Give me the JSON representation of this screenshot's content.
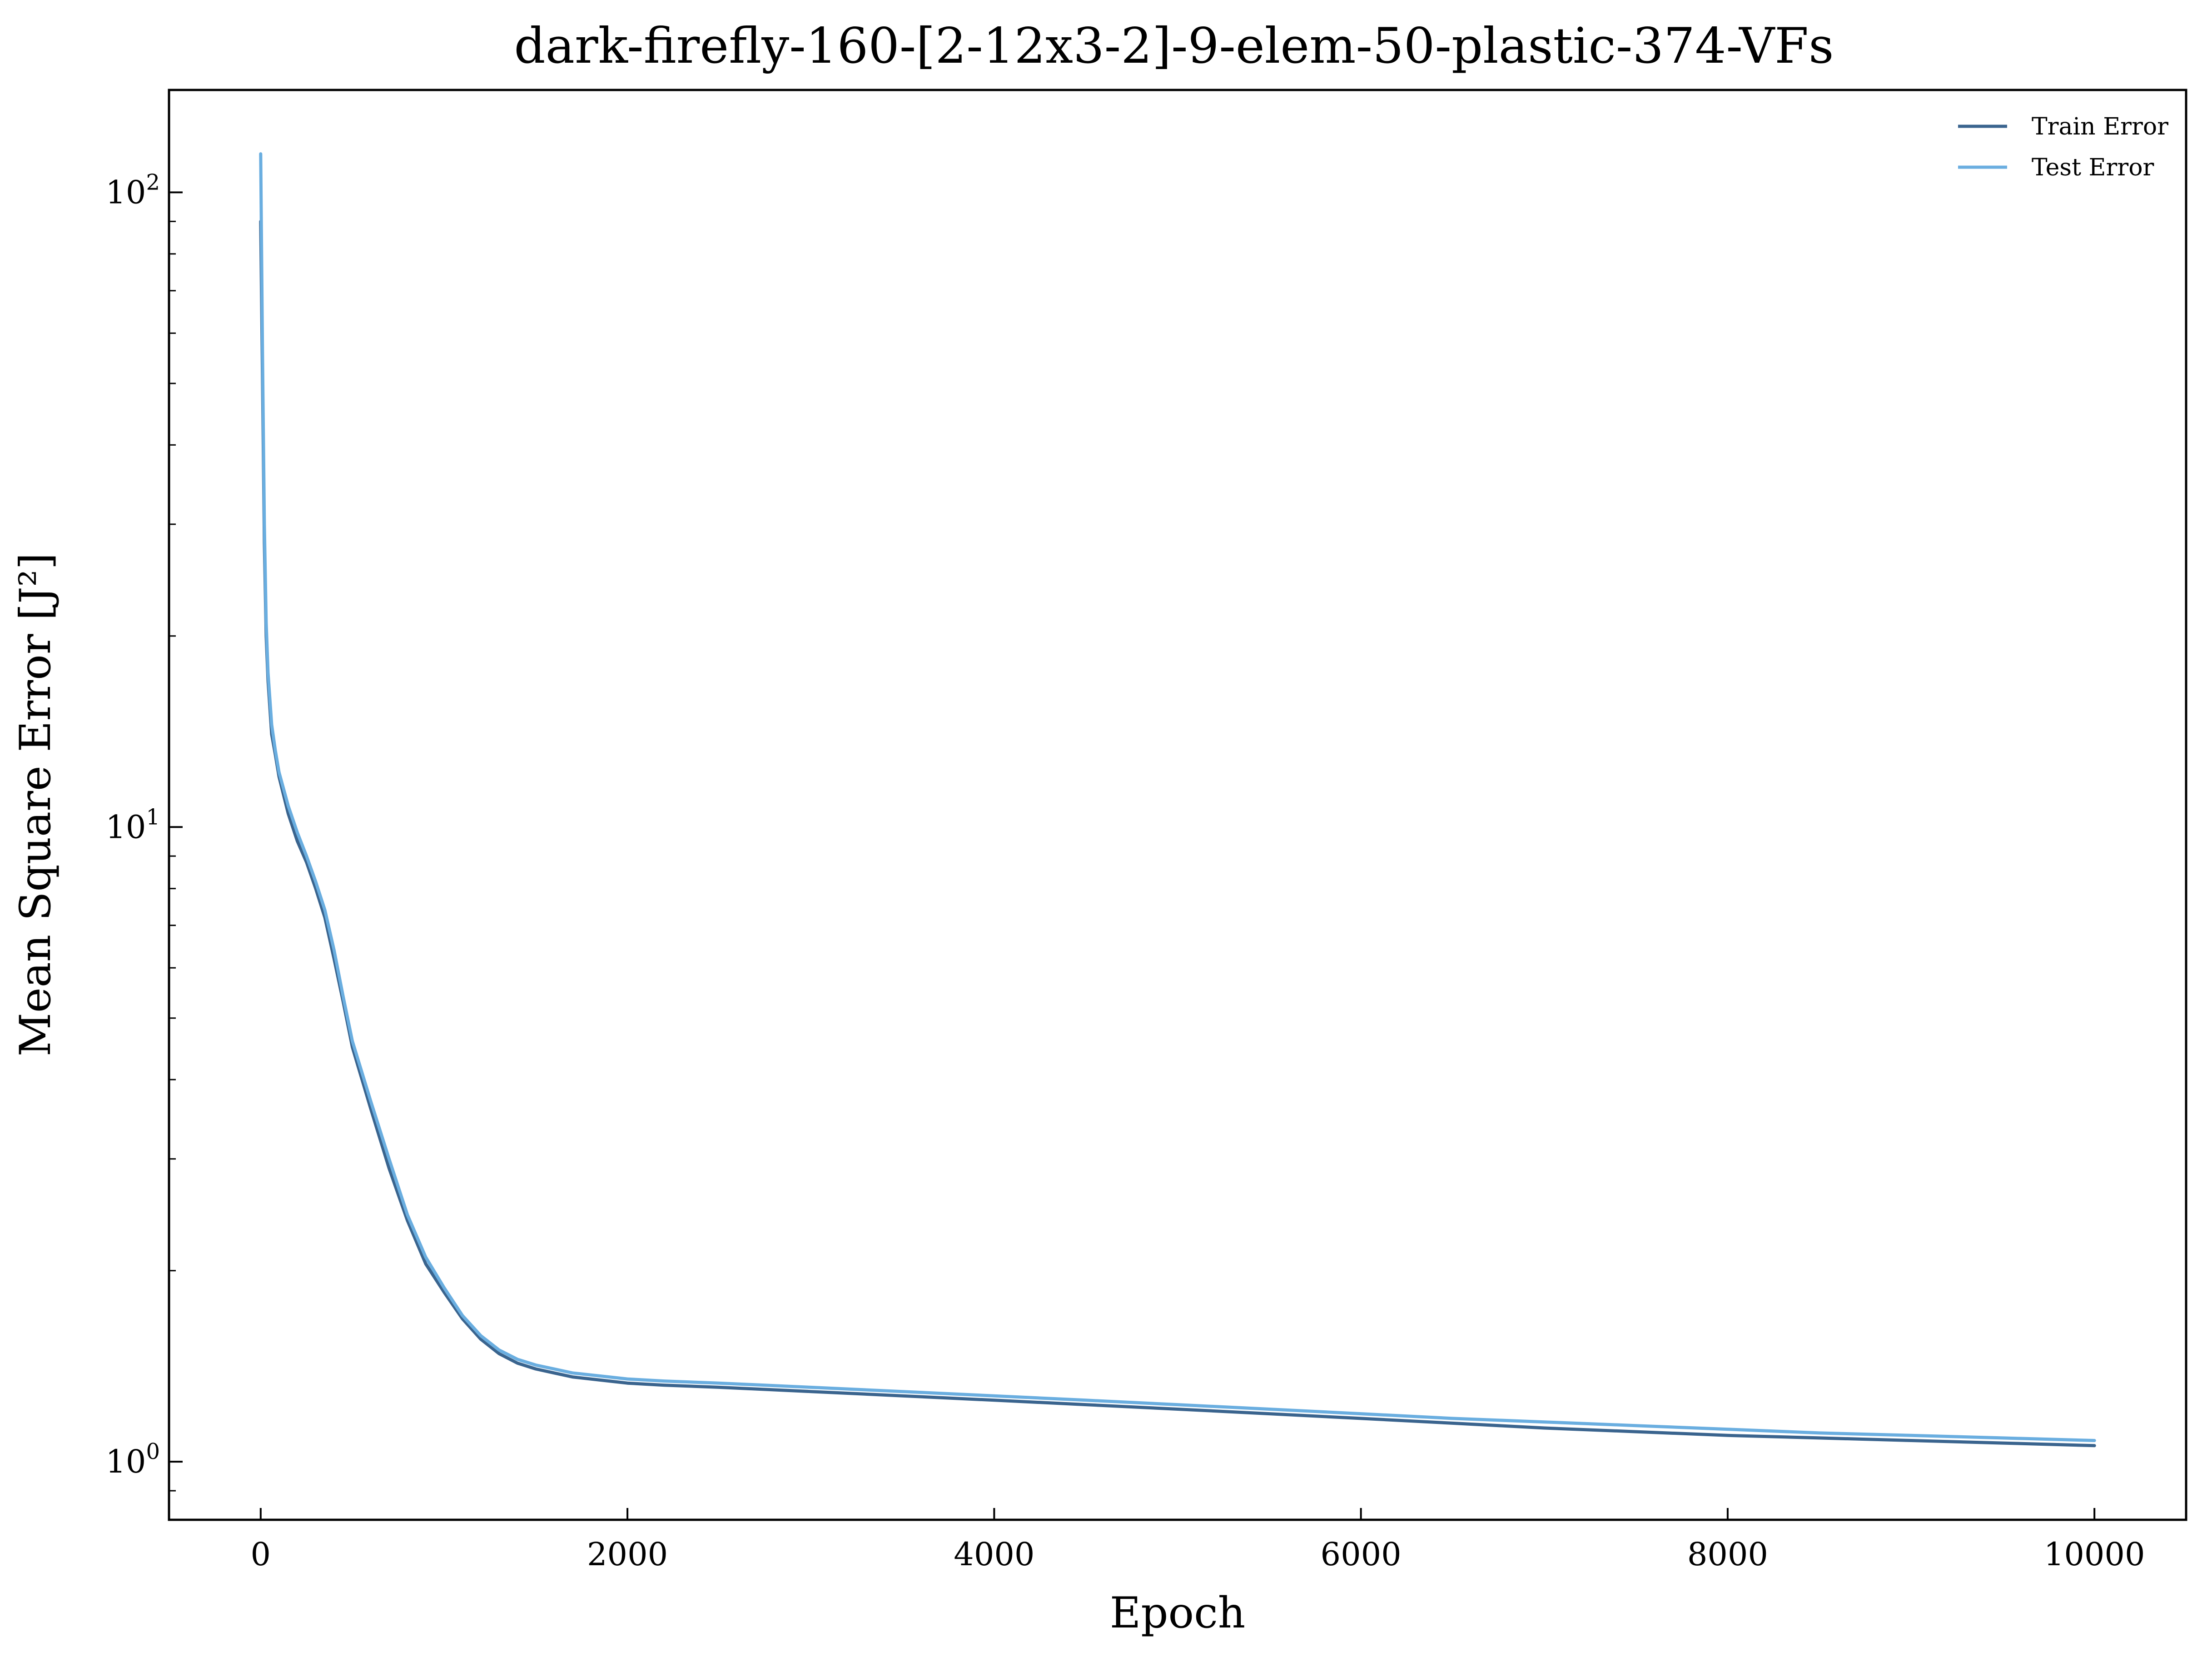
{
  "chart_data": {
    "type": "line",
    "title": "dark-firefly-160-[2-12x3-2]-9-elem-50-plastic-374-VFs",
    "xlabel": "Epoch",
    "ylabel": "Mean Square Error [J²]",
    "xlim": [
      -500,
      10500
    ],
    "ylim": [
      0.81,
      145
    ],
    "yscale": "log",
    "grid": false,
    "legend_position": "top-right",
    "x_ticks": [
      {
        "value": 0,
        "label": "0"
      },
      {
        "value": 2000,
        "label": "2000"
      },
      {
        "value": 4000,
        "label": "4000"
      },
      {
        "value": 6000,
        "label": "6000"
      },
      {
        "value": 8000,
        "label": "8000"
      },
      {
        "value": 10000,
        "label": "10000"
      }
    ],
    "y_ticks": [
      {
        "value": 1,
        "base": "10",
        "exp": "0"
      },
      {
        "value": 10,
        "base": "10",
        "exp": "1"
      },
      {
        "value": 100,
        "base": "10",
        "exp": "2"
      }
    ],
    "y_minor_ticks": [
      0.9,
      2,
      3,
      4,
      5,
      6,
      7,
      8,
      9,
      20,
      30,
      40,
      50,
      60,
      70,
      80,
      90
    ],
    "series": [
      {
        "name": "Train Error",
        "color": "#3a648e",
        "x": [
          0,
          10,
          20,
          30,
          40,
          60,
          80,
          100,
          150,
          200,
          250,
          300,
          350,
          400,
          450,
          500,
          600,
          700,
          800,
          900,
          1000,
          1100,
          1200,
          1300,
          1400,
          1500,
          1600,
          1700,
          1800,
          1900,
          2000,
          2200,
          2500,
          3000,
          3500,
          4000,
          4500,
          5000,
          5500,
          6000,
          6500,
          7000,
          7500,
          8000,
          8500,
          9000,
          9500,
          10000
        ],
        "y": [
          90,
          50,
          28,
          20,
          17,
          14,
          13,
          12,
          10.5,
          9.5,
          8.8,
          8.0,
          7.2,
          6.2,
          5.3,
          4.5,
          3.6,
          2.9,
          2.4,
          2.05,
          1.85,
          1.68,
          1.56,
          1.48,
          1.43,
          1.4,
          1.38,
          1.36,
          1.35,
          1.34,
          1.33,
          1.32,
          1.31,
          1.29,
          1.27,
          1.25,
          1.23,
          1.21,
          1.19,
          1.17,
          1.15,
          1.13,
          1.115,
          1.1,
          1.09,
          1.08,
          1.07,
          1.06
        ]
      },
      {
        "name": "Test Error",
        "color": "#6aaee0",
        "x": [
          0,
          10,
          20,
          30,
          40,
          60,
          80,
          100,
          150,
          200,
          250,
          300,
          350,
          400,
          450,
          500,
          600,
          700,
          800,
          900,
          1000,
          1100,
          1200,
          1300,
          1400,
          1500,
          1600,
          1700,
          1800,
          1900,
          2000,
          2200,
          2500,
          3000,
          3500,
          4000,
          4500,
          5000,
          5500,
          6000,
          6500,
          7000,
          7500,
          8000,
          8500,
          9000,
          9500,
          10000
        ],
        "y": [
          115,
          55,
          30,
          21,
          17.5,
          14.5,
          13.2,
          12.2,
          10.8,
          9.8,
          9.0,
          8.2,
          7.4,
          6.4,
          5.4,
          4.6,
          3.7,
          3.0,
          2.45,
          2.1,
          1.88,
          1.7,
          1.58,
          1.5,
          1.45,
          1.42,
          1.4,
          1.38,
          1.37,
          1.36,
          1.35,
          1.34,
          1.33,
          1.31,
          1.29,
          1.27,
          1.25,
          1.23,
          1.21,
          1.19,
          1.17,
          1.155,
          1.14,
          1.125,
          1.11,
          1.1,
          1.09,
          1.08
        ]
      }
    ]
  }
}
